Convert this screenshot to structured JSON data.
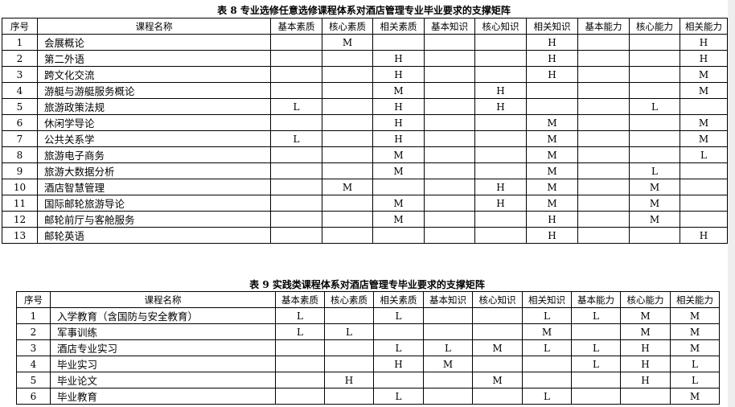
{
  "columns": [
    "序号",
    "课程名称",
    "基本素质",
    "核心素质",
    "相关素质",
    "基本知识",
    "核心知识",
    "相关知识",
    "基本能力",
    "核心能力",
    "相关能力"
  ],
  "table8": {
    "title": "表 8 专业选修任意选修课程体系对酒店管理专业毕业要求的支撑矩阵",
    "rows": [
      [
        "1",
        "会展概论",
        "",
        "M",
        "",
        "",
        "",
        "H",
        "",
        "",
        "H"
      ],
      [
        "2",
        "第二外语",
        "",
        "",
        "H",
        "",
        "",
        "H",
        "",
        "",
        "H"
      ],
      [
        "3",
        "跨文化交流",
        "",
        "",
        "H",
        "",
        "",
        "H",
        "",
        "",
        "M"
      ],
      [
        "4",
        "游艇与游艇服务概论",
        "",
        "",
        "M",
        "",
        "H",
        "",
        "",
        "",
        "M"
      ],
      [
        "5",
        "旅游政策法规",
        "L",
        "",
        "H",
        "",
        "H",
        "",
        "",
        "L",
        ""
      ],
      [
        "6",
        "休闲学导论",
        "",
        "",
        "H",
        "",
        "",
        "M",
        "",
        "",
        "M"
      ],
      [
        "7",
        "公共关系学",
        "L",
        "",
        "H",
        "",
        "",
        "M",
        "",
        "",
        "M"
      ],
      [
        "8",
        "旅游电子商务",
        "",
        "",
        "M",
        "",
        "",
        "M",
        "",
        "",
        "L"
      ],
      [
        "9",
        "旅游大数据分析",
        "",
        "",
        "M",
        "",
        "",
        "M",
        "",
        "L",
        ""
      ],
      [
        "10",
        "酒店智慧管理",
        "",
        "M",
        "",
        "",
        "H",
        "M",
        "",
        "M",
        ""
      ],
      [
        "11",
        "国际邮轮旅游导论",
        "",
        "",
        "M",
        "",
        "H",
        "M",
        "",
        "M",
        ""
      ],
      [
        "12",
        "邮轮前厅与客舱服务",
        "",
        "",
        "M",
        "",
        "",
        "H",
        "",
        "M",
        ""
      ],
      [
        "13",
        "邮轮英语",
        "",
        "",
        "",
        "",
        "",
        "H",
        "",
        "",
        "H"
      ]
    ]
  },
  "table9": {
    "title": "表 9 实践类课程体系对酒店管理专毕业要求的支撑矩阵",
    "rows": [
      [
        "1",
        "入学教育（含国防与安全教育）",
        "L",
        "",
        "L",
        "",
        "",
        "L",
        "L",
        "M",
        "M"
      ],
      [
        "2",
        "军事训练",
        "L",
        "L",
        "",
        "",
        "",
        "M",
        "",
        "M",
        "M"
      ],
      [
        "3",
        "酒店专业实习",
        "",
        "",
        "L",
        "L",
        "M",
        "L",
        "L",
        "H",
        "M"
      ],
      [
        "4",
        "毕业实习",
        "",
        "",
        "H",
        "M",
        "",
        "",
        "L",
        "H",
        "L"
      ],
      [
        "5",
        "毕业论文",
        "",
        "H",
        "",
        "",
        "M",
        "",
        "",
        "H",
        "L"
      ],
      [
        "6",
        "毕业教育",
        "",
        "",
        "L",
        "",
        "",
        "L",
        "",
        "",
        "M"
      ]
    ]
  }
}
